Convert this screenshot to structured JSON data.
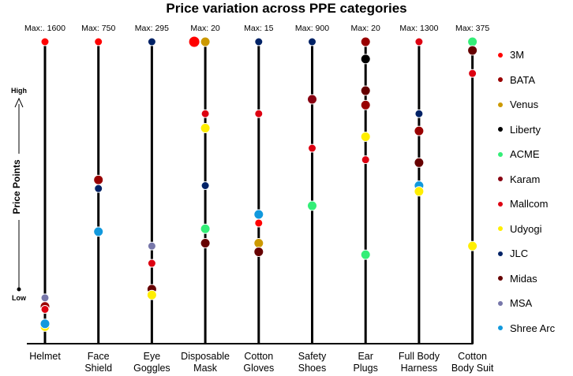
{
  "chart_data": {
    "type": "scatter",
    "title": "Price variation across PPE categories",
    "ylabel": "Price Points",
    "y_high_label": "High",
    "y_low_label": "Low",
    "categories": [
      {
        "label_lines": [
          "Helmet"
        ],
        "max_label": "Max:. 1600"
      },
      {
        "label_lines": [
          "Face",
          "Shield"
        ],
        "max_label": "Max: 750"
      },
      {
        "label_lines": [
          "Eye",
          "Goggles"
        ],
        "max_label": "Max: 295"
      },
      {
        "label_lines": [
          "Disposable",
          "Mask"
        ],
        "max_label": "Max: 20"
      },
      {
        "label_lines": [
          "Cotton",
          "Gloves"
        ],
        "max_label": "Max: 15"
      },
      {
        "label_lines": [
          "Safety",
          "Shoes"
        ],
        "max_label": "Max: 900"
      },
      {
        "label_lines": [
          "Ear",
          "Plugs"
        ],
        "max_label": "Max: 20"
      },
      {
        "label_lines": [
          "Full Body",
          "Harness"
        ],
        "max_label": "Max: 1300"
      },
      {
        "label_lines": [
          "Cotton",
          "Body Suit"
        ],
        "max_label": "Max: 375"
      }
    ],
    "legend_position": "right",
    "brands": [
      {
        "name": "3M",
        "color": "#ff0000",
        "size": "small"
      },
      {
        "name": "BATA",
        "color": "#990000",
        "size": "large"
      },
      {
        "name": "Venus",
        "color": "#cc9900",
        "size": "large"
      },
      {
        "name": "Liberty",
        "color": "#000000",
        "size": "large"
      },
      {
        "name": "ACME",
        "color": "#33ee77",
        "size": "large"
      },
      {
        "name": "Karam",
        "color": "#880011",
        "size": "large"
      },
      {
        "name": "Mallcom",
        "color": "#dd0011",
        "size": "small"
      },
      {
        "name": "Udyogi",
        "color": "#ffee00",
        "size": "large"
      },
      {
        "name": "JLC",
        "color": "#002266",
        "size": "small"
      },
      {
        "name": "Midas",
        "color": "#660000",
        "size": "large"
      },
      {
        "name": "MSA",
        "color": "#7777aa",
        "size": "small"
      },
      {
        "name": "Shree Arc",
        "color": "#1199dd",
        "size": "large"
      }
    ],
    "y_scale": "relative, 0 = lowest price, 100 = category maximum",
    "points": [
      {
        "cat": 0,
        "brand": "3M",
        "y": 100
      },
      {
        "cat": 0,
        "brand": "MSA",
        "y": 11
      },
      {
        "cat": 0,
        "brand": "BATA",
        "y": 8
      },
      {
        "cat": 0,
        "brand": "Mallcom",
        "y": 7
      },
      {
        "cat": 0,
        "brand": "Udyogi",
        "y": 1
      },
      {
        "cat": 0,
        "brand": "Shree Arc",
        "y": 2
      },
      {
        "cat": 1,
        "brand": "3M",
        "y": 100
      },
      {
        "cat": 1,
        "brand": "BATA",
        "y": 52
      },
      {
        "cat": 1,
        "brand": "JLC",
        "y": 49
      },
      {
        "cat": 1,
        "brand": "Shree Arc",
        "y": 34
      },
      {
        "cat": 2,
        "brand": "JLC",
        "y": 100
      },
      {
        "cat": 2,
        "brand": "MSA",
        "y": 29
      },
      {
        "cat": 2,
        "brand": "Mallcom",
        "y": 23
      },
      {
        "cat": 2,
        "brand": "Midas",
        "y": 14
      },
      {
        "cat": 2,
        "brand": "Udyogi",
        "y": 12
      },
      {
        "cat": 3,
        "brand": "3M",
        "y": 100
      },
      {
        "cat": 3,
        "brand": "Venus",
        "y": 100
      },
      {
        "cat": 3,
        "brand": "Mallcom",
        "y": 75
      },
      {
        "cat": 3,
        "brand": "Udyogi",
        "y": 70
      },
      {
        "cat": 3,
        "brand": "JLC",
        "y": 50
      },
      {
        "cat": 3,
        "brand": "ACME",
        "y": 35
      },
      {
        "cat": 3,
        "brand": "Midas",
        "y": 30
      },
      {
        "cat": 4,
        "brand": "JLC",
        "y": 100
      },
      {
        "cat": 4,
        "brand": "Mallcom",
        "y": 75
      },
      {
        "cat": 4,
        "brand": "Shree Arc",
        "y": 40
      },
      {
        "cat": 4,
        "brand": "3M",
        "y": 37
      },
      {
        "cat": 4,
        "brand": "Venus",
        "y": 30
      },
      {
        "cat": 4,
        "brand": "Midas",
        "y": 27
      },
      {
        "cat": 5,
        "brand": "JLC",
        "y": 100
      },
      {
        "cat": 5,
        "brand": "Karam",
        "y": 80
      },
      {
        "cat": 5,
        "brand": "Mallcom",
        "y": 63
      },
      {
        "cat": 5,
        "brand": "ACME",
        "y": 43
      },
      {
        "cat": 6,
        "brand": "BATA",
        "y": 100
      },
      {
        "cat": 6,
        "brand": "Liberty",
        "y": 94
      },
      {
        "cat": 6,
        "brand": "Midas",
        "y": 83
      },
      {
        "cat": 6,
        "brand": "BATA",
        "y": 78
      },
      {
        "cat": 6,
        "brand": "Udyogi",
        "y": 67
      },
      {
        "cat": 6,
        "brand": "Mallcom",
        "y": 59
      },
      {
        "cat": 6,
        "brand": "ACME",
        "y": 26
      },
      {
        "cat": 7,
        "brand": "Mallcom",
        "y": 100
      },
      {
        "cat": 7,
        "brand": "JLC",
        "y": 75
      },
      {
        "cat": 7,
        "brand": "BATA",
        "y": 69
      },
      {
        "cat": 7,
        "brand": "Midas",
        "y": 58
      },
      {
        "cat": 7,
        "brand": "Shree Arc",
        "y": 50
      },
      {
        "cat": 7,
        "brand": "Udyogi",
        "y": 48
      },
      {
        "cat": 8,
        "brand": "ACME",
        "y": 100
      },
      {
        "cat": 8,
        "brand": "Midas",
        "y": 97
      },
      {
        "cat": 8,
        "brand": "Mallcom",
        "y": 89
      },
      {
        "cat": 8,
        "brand": "Udyogi",
        "y": 29
      }
    ]
  }
}
